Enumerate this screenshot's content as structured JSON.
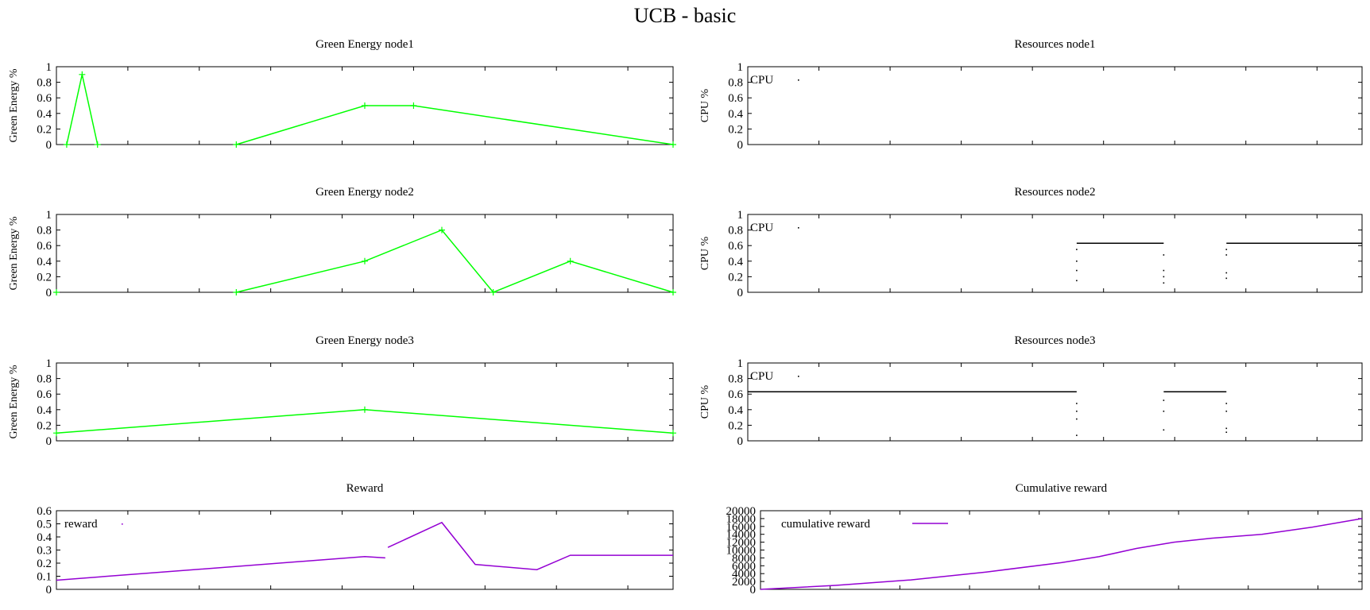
{
  "figure_title": "UCB - basic",
  "chart_data": [
    {
      "id": "green1",
      "type": "line",
      "title": "Green Energy node1",
      "xlabel": "",
      "ylabel": "Green Energy %",
      "xlim": [
        0,
        24
      ],
      "ylim": [
        0,
        1
      ],
      "yticks": [
        "0",
        "0.2",
        "0.4",
        "0.6",
        "0.8",
        "1"
      ],
      "xticks": [
        0,
        2.78,
        5.56,
        8.34,
        11.12,
        13.9,
        16.68,
        19.46,
        22.24
      ],
      "color": "#00ff00",
      "marker": "plus",
      "series": [
        {
          "values": [
            [
              0.4,
              0
            ],
            [
              1.0,
              0.9
            ],
            [
              1.6,
              0
            ]
          ]
        },
        {
          "values": [
            [
              7.0,
              0
            ],
            [
              12.0,
              0.5
            ],
            [
              13.9,
              0.5
            ],
            [
              24.0,
              0
            ]
          ]
        }
      ]
    },
    {
      "id": "res1",
      "type": "line",
      "title": "Resources node1",
      "xlabel": "",
      "ylabel": "CPU %",
      "xlim": [
        0,
        24
      ],
      "ylim": [
        0,
        1
      ],
      "yticks": [
        "0",
        "0.2",
        "0.4",
        "0.6",
        "0.8",
        "1"
      ],
      "xticks": [
        0,
        2.78,
        5.56,
        8.34,
        11.12,
        13.9,
        16.68,
        19.46,
        22.24
      ],
      "color": "#000000",
      "legend": [
        "CPU"
      ],
      "legend_position": "top-left",
      "series": []
    },
    {
      "id": "green2",
      "type": "line",
      "title": "Green Energy node2",
      "xlabel": "",
      "ylabel": "Green Energy %",
      "xlim": [
        0,
        24
      ],
      "ylim": [
        0,
        1
      ],
      "yticks": [
        "0",
        "0.2",
        "0.4",
        "0.6",
        "0.8",
        "1"
      ],
      "xticks": [
        0,
        2.78,
        5.56,
        8.34,
        11.12,
        13.9,
        16.68,
        19.46,
        22.24
      ],
      "color": "#00ff00",
      "marker": "plus",
      "series": [
        {
          "values": [
            [
              0.0,
              0
            ]
          ]
        },
        {
          "values": [
            [
              7.0,
              0
            ],
            [
              12.0,
              0.4
            ],
            [
              15.0,
              0.8
            ],
            [
              17.0,
              0
            ],
            [
              20.0,
              0.4
            ],
            [
              24.0,
              0
            ]
          ]
        }
      ]
    },
    {
      "id": "res2",
      "type": "line",
      "title": "Resources node2",
      "xlabel": "",
      "ylabel": "CPU %",
      "xlim": [
        0,
        24
      ],
      "ylim": [
        0,
        1
      ],
      "yticks": [
        "0",
        "0.2",
        "0.4",
        "0.6",
        "0.8",
        "1"
      ],
      "xticks": [
        0,
        2.78,
        5.56,
        8.34,
        11.12,
        13.9,
        16.68,
        19.46,
        22.24
      ],
      "color": "#000000",
      "legend": [
        "CPU"
      ],
      "legend_position": "top-left",
      "series": [
        {
          "values": [
            [
              12.85,
              0.63
            ],
            [
              16.25,
              0.63
            ]
          ]
        },
        {
          "values": [
            [
              18.7,
              0.63
            ],
            [
              24.0,
              0.63
            ]
          ]
        }
      ],
      "dots": [
        [
          12.85,
          0.55
        ],
        [
          12.85,
          0.4
        ],
        [
          12.85,
          0.28
        ],
        [
          12.85,
          0.15
        ],
        [
          16.25,
          0.48
        ],
        [
          16.25,
          0.28
        ],
        [
          16.25,
          0.2
        ],
        [
          16.25,
          0.12
        ],
        [
          18.7,
          0.55
        ],
        [
          18.7,
          0.48
        ],
        [
          18.7,
          0.25
        ],
        [
          18.7,
          0.18
        ]
      ]
    },
    {
      "id": "green3",
      "type": "line",
      "title": "Green Energy node3",
      "xlabel": "",
      "ylabel": "Green Energy %",
      "xlim": [
        0,
        24
      ],
      "ylim": [
        0,
        1
      ],
      "yticks": [
        "0",
        "0.2",
        "0.4",
        "0.6",
        "0.8",
        "1"
      ],
      "xticks": [
        0,
        2.78,
        5.56,
        8.34,
        11.12,
        13.9,
        16.68,
        19.46,
        22.24
      ],
      "color": "#00ff00",
      "marker": "plus",
      "series": [
        {
          "values": [
            [
              0.0,
              0.1
            ],
            [
              12.0,
              0.4
            ],
            [
              24.0,
              0.1
            ]
          ]
        }
      ]
    },
    {
      "id": "res3",
      "type": "line",
      "title": "Resources node3",
      "xlabel": "",
      "ylabel": "CPU %",
      "xlim": [
        0,
        24
      ],
      "ylim": [
        0,
        1
      ],
      "yticks": [
        "0",
        "0.2",
        "0.4",
        "0.6",
        "0.8",
        "1"
      ],
      "xticks": [
        0,
        2.78,
        5.56,
        8.34,
        11.12,
        13.9,
        16.68,
        19.46,
        22.24
      ],
      "color": "#000000",
      "legend": [
        "CPU"
      ],
      "legend_position": "top-left",
      "series": [
        {
          "values": [
            [
              0.0,
              0.63
            ],
            [
              12.85,
              0.63
            ]
          ]
        },
        {
          "values": [
            [
              16.25,
              0.63
            ],
            [
              18.7,
              0.63
            ]
          ]
        }
      ],
      "dots": [
        [
          12.85,
          0.48
        ],
        [
          12.85,
          0.38
        ],
        [
          12.85,
          0.28
        ],
        [
          12.85,
          0.07
        ],
        [
          16.25,
          0.52
        ],
        [
          16.25,
          0.38
        ],
        [
          16.25,
          0.14
        ],
        [
          18.7,
          0.48
        ],
        [
          18.7,
          0.38
        ],
        [
          18.7,
          0.16
        ],
        [
          18.7,
          0.11
        ]
      ]
    },
    {
      "id": "reward",
      "type": "line",
      "title": "Reward",
      "xlabel": "",
      "ylabel": "",
      "xlim": [
        0,
        24
      ],
      "ylim": [
        0,
        0.6
      ],
      "yticks": [
        "0",
        "0.1",
        "0.2",
        "0.3",
        "0.4",
        "0.5",
        "0.6"
      ],
      "xticks": [
        0,
        2.78,
        5.56,
        8.34,
        11.12,
        13.9,
        16.68,
        19.46,
        22.24
      ],
      "color": "#9400d3",
      "legend": [
        "reward"
      ],
      "legend_position": "top-left",
      "series": [
        {
          "name": "reward",
          "values": [
            [
              0.0,
              0.07
            ],
            [
              12.0,
              0.25
            ],
            [
              12.8,
              0.24
            ]
          ]
        },
        {
          "name": "reward",
          "values": [
            [
              12.9,
              0.32
            ],
            [
              15.0,
              0.51
            ],
            [
              16.3,
              0.19
            ],
            [
              18.7,
              0.15
            ],
            [
              20.0,
              0.26
            ],
            [
              24.0,
              0.26
            ]
          ]
        }
      ]
    },
    {
      "id": "cumreward",
      "type": "line",
      "title": "Cumulative reward",
      "xlabel": "",
      "ylabel": "",
      "xlim": [
        0,
        24
      ],
      "ylim": [
        0,
        20000
      ],
      "yticks": [
        "0",
        "2000",
        "4000",
        "6000",
        "8000",
        "10000",
        "12000",
        "14000",
        "16000",
        "18000",
        "20000"
      ],
      "xticks": [
        0,
        2.78,
        5.56,
        8.34,
        11.12,
        13.9,
        16.68,
        19.46,
        22.24
      ],
      "color": "#9400d3",
      "legend": [
        "cumulative reward"
      ],
      "legend_position": "top-left",
      "series": [
        {
          "name": "cumulative reward",
          "values": [
            [
              0,
              0
            ],
            [
              3,
              1000
            ],
            [
              6,
              2400
            ],
            [
              9,
              4400
            ],
            [
              12,
              6800
            ],
            [
              13.5,
              8300
            ],
            [
              15,
              10400
            ],
            [
              16.5,
              12000
            ],
            [
              18,
              13000
            ],
            [
              20,
              14000
            ],
            [
              22,
              15800
            ],
            [
              24,
              18000
            ]
          ]
        }
      ]
    }
  ]
}
